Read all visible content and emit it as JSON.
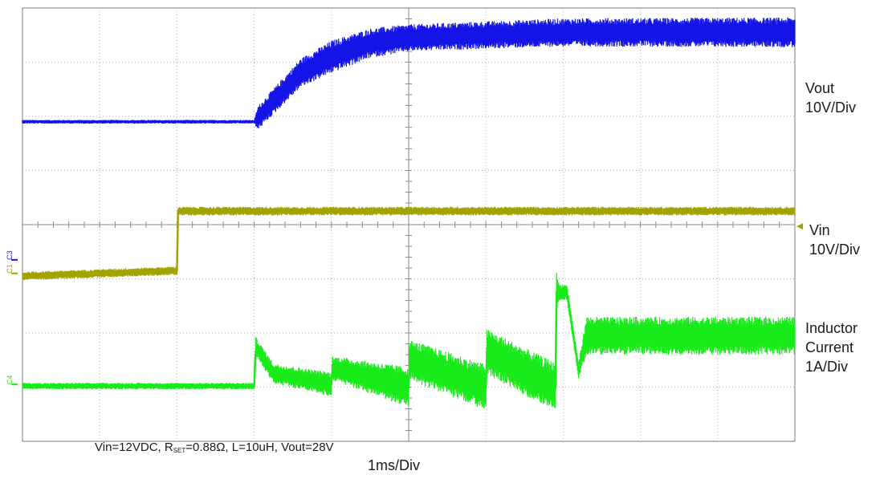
{
  "chart_data": {
    "type": "line",
    "x_unit": "ms",
    "xlim": [
      0,
      10
    ],
    "ylim_div": [
      -4,
      4
    ],
    "divisions": {
      "x": 10,
      "y": 8
    },
    "grid": true,
    "background": "#ffffff",
    "channels": [
      {
        "id": "C3",
        "marker": "C3",
        "name": "Vout",
        "scale": "10V/Div",
        "color": "#1414e6",
        "ref_level_div": -0.65,
        "label_lines": [
          "Vout",
          "10V/Div"
        ],
        "points": [
          [
            0,
            1.9
          ],
          [
            3.0,
            1.9
          ],
          [
            3.3,
            2.35
          ],
          [
            3.6,
            2.8
          ],
          [
            4.0,
            3.1
          ],
          [
            4.5,
            3.35
          ],
          [
            5.0,
            3.45
          ],
          [
            6.0,
            3.5
          ],
          [
            7.0,
            3.55
          ],
          [
            10.0,
            3.55
          ]
        ],
        "noise_pp_div": [
          [
            0,
            0.07
          ],
          [
            3.0,
            0.07
          ],
          [
            3.05,
            0.45
          ],
          [
            4.0,
            0.6
          ],
          [
            5.0,
            0.5
          ],
          [
            10.0,
            0.55
          ]
        ]
      },
      {
        "id": "C1",
        "marker": "C1",
        "name": "Vin",
        "scale": "10V/Div",
        "color": "#a3a300",
        "ref_level_div": -0.9,
        "label_lines": [
          "Vin",
          "10V/Div"
        ],
        "points": [
          [
            0,
            -0.95
          ],
          [
            2.0,
            -0.85
          ],
          [
            2.01,
            0.25
          ],
          [
            10.0,
            0.25
          ]
        ],
        "noise_pp_div": [
          [
            0,
            0.16
          ],
          [
            2.0,
            0.16
          ],
          [
            2.01,
            0.16
          ],
          [
            10.0,
            0.16
          ]
        ]
      },
      {
        "id": "C4",
        "marker": "C4",
        "name": "Inductor Current",
        "scale": "1A/Div",
        "color": "#19ea19",
        "ref_level_div": -2.95,
        "label_lines": [
          "Inductor",
          "Current",
          "1A/Div"
        ],
        "points": [
          [
            0,
            -2.98
          ],
          [
            3.0,
            -2.98
          ],
          [
            3.02,
            -2.25
          ],
          [
            3.25,
            -2.75
          ],
          [
            4.0,
            -2.95
          ],
          [
            4.01,
            -2.65
          ],
          [
            5.0,
            -3.0
          ],
          [
            5.01,
            -2.5
          ],
          [
            6.0,
            -3.0
          ],
          [
            6.01,
            -2.35
          ],
          [
            6.9,
            -3.0
          ],
          [
            6.91,
            -1.25
          ],
          [
            7.05,
            -1.25
          ],
          [
            7.2,
            -2.7
          ],
          [
            7.3,
            -2.05
          ],
          [
            10.0,
            -2.05
          ]
        ],
        "noise_pp_div": [
          [
            0,
            0.12
          ],
          [
            3.0,
            0.12
          ],
          [
            3.02,
            0.35
          ],
          [
            4.0,
            0.45
          ],
          [
            5.0,
            0.75
          ],
          [
            6.0,
            0.85
          ],
          [
            6.9,
            0.9
          ],
          [
            6.95,
            0.3
          ],
          [
            7.2,
            0.3
          ],
          [
            7.3,
            0.7
          ],
          [
            10.0,
            0.7
          ]
        ]
      }
    ],
    "condition_text": {
      "pre": "Vin=12VDC, R",
      "sub": "SET",
      "post": "=0.88Ω, L=10uH, Vout=28V"
    },
    "time_scale": "1ms/Div"
  }
}
